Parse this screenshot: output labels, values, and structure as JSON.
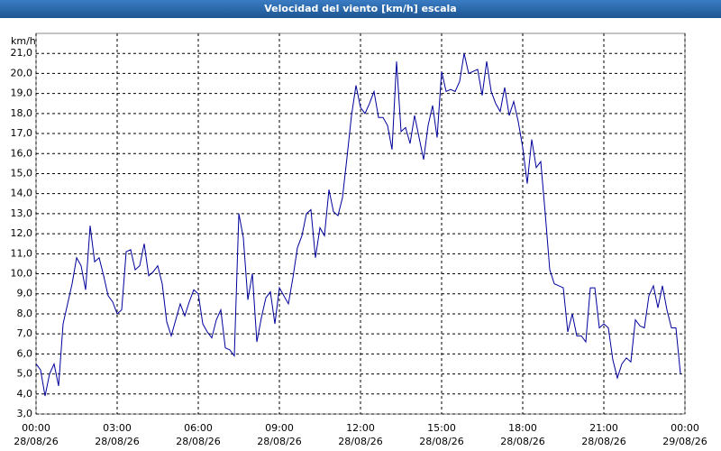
{
  "chart_data": {
    "type": "line",
    "title": "Velocidad del viento [km/h] escala",
    "ylabel": "km/h",
    "xlim": [
      0,
      1440
    ],
    "ylim": [
      3,
      22
    ],
    "grid": true,
    "xticks": [
      {
        "value": 0,
        "label": "00:00"
      },
      {
        "value": 180,
        "label": "03:00"
      },
      {
        "value": 360,
        "label": "06:00"
      },
      {
        "value": 540,
        "label": "09:00"
      },
      {
        "value": 720,
        "label": "12:00"
      },
      {
        "value": 900,
        "label": "15:00"
      },
      {
        "value": 1080,
        "label": "18:00"
      },
      {
        "value": 1260,
        "label": "21:00"
      },
      {
        "value": 1440,
        "label": "00:00"
      }
    ],
    "xtick_dates": [
      "28/08/26",
      "28/08/26",
      "28/08/26",
      "28/08/26",
      "28/08/26",
      "28/08/26",
      "28/08/26",
      "28/08/26",
      "29/08/26"
    ],
    "yticks": [
      {
        "value": 3,
        "label": "3,0"
      },
      {
        "value": 4,
        "label": "4,0"
      },
      {
        "value": 5,
        "label": "5,0"
      },
      {
        "value": 6,
        "label": "6,0"
      },
      {
        "value": 7,
        "label": "7,0"
      },
      {
        "value": 8,
        "label": "8,0"
      },
      {
        "value": 9,
        "label": "9,0"
      },
      {
        "value": 10,
        "label": "10,0"
      },
      {
        "value": 11,
        "label": "11,0"
      },
      {
        "value": 12,
        "label": "12,0"
      },
      {
        "value": 13,
        "label": "13,0"
      },
      {
        "value": 14,
        "label": "14,0"
      },
      {
        "value": 15,
        "label": "15,0"
      },
      {
        "value": 16,
        "label": "16,0"
      },
      {
        "value": 17,
        "label": "17,0"
      },
      {
        "value": 18,
        "label": "18,0"
      },
      {
        "value": 19,
        "label": "19,0"
      },
      {
        "value": 20,
        "label": "20,0"
      },
      {
        "value": 21,
        "label": "21,0"
      }
    ],
    "x": [
      0,
      10,
      20,
      30,
      40,
      50,
      60,
      70,
      80,
      90,
      100,
      110,
      120,
      130,
      140,
      150,
      160,
      170,
      180,
      190,
      200,
      210,
      220,
      230,
      240,
      250,
      260,
      270,
      280,
      290,
      300,
      310,
      320,
      330,
      340,
      350,
      360,
      370,
      380,
      390,
      400,
      410,
      420,
      430,
      440,
      450,
      460,
      470,
      480,
      490,
      500,
      510,
      520,
      530,
      540,
      550,
      560,
      570,
      580,
      590,
      600,
      610,
      620,
      630,
      640,
      650,
      660,
      670,
      680,
      690,
      700,
      710,
      720,
      730,
      740,
      750,
      760,
      770,
      780,
      790,
      800,
      810,
      820,
      830,
      840,
      850,
      860,
      870,
      880,
      890,
      900,
      910,
      920,
      930,
      940,
      950,
      960,
      970,
      980,
      990,
      1000,
      1010,
      1020,
      1030,
      1040,
      1050,
      1060,
      1070,
      1080,
      1090,
      1100,
      1110,
      1120,
      1130,
      1140,
      1150,
      1160,
      1170,
      1180,
      1190,
      1200,
      1210,
      1220,
      1230,
      1240,
      1250,
      1260,
      1270,
      1280,
      1290,
      1300,
      1310,
      1320,
      1330,
      1340,
      1350,
      1360,
      1370,
      1380,
      1390,
      1400,
      1410,
      1420,
      1430
    ],
    "series": [
      {
        "color": "#00009c",
        "values": [
          5.5,
          5.2,
          3.9,
          5.0,
          5.5,
          4.4,
          7.5,
          8.5,
          9.5,
          10.8,
          10.4,
          9.2,
          12.4,
          10.6,
          10.8,
          9.9,
          8.9,
          8.6,
          8.0,
          8.2,
          11.1,
          11.2,
          10.2,
          10.4,
          11.5,
          9.9,
          10.1,
          10.4,
          9.5,
          7.6,
          6.9,
          7.7,
          8.5,
          7.9,
          8.6,
          9.2,
          9.0,
          7.5,
          7.1,
          6.8,
          7.7,
          8.2,
          6.3,
          6.2,
          5.9,
          13.0,
          11.8,
          8.7,
          10.0,
          6.6,
          7.8,
          8.8,
          9.1,
          7.5,
          9.3,
          8.9,
          8.5,
          9.8,
          11.3,
          11.9,
          13.0,
          13.2,
          10.8,
          12.3,
          11.9,
          14.2,
          13.1,
          12.9,
          13.8,
          15.8,
          17.9,
          19.4,
          18.3,
          18.0,
          18.5,
          19.1,
          17.8,
          17.8,
          17.4,
          16.2,
          20.6,
          17.1,
          17.3,
          16.5,
          17.9,
          16.8,
          15.7,
          17.4,
          18.4,
          16.8,
          20.1,
          19.1,
          19.2,
          19.1,
          19.6,
          21.0,
          20.0,
          20.1,
          20.2,
          18.9,
          20.6,
          19.1,
          18.5,
          18.1,
          19.3,
          17.9,
          18.6,
          17.6,
          16.3,
          14.5,
          16.7,
          15.3,
          15.6,
          13.0,
          10.2,
          9.5,
          9.4,
          9.3,
          7.1,
          8.0,
          6.9,
          6.9,
          6.6,
          9.3,
          9.3,
          7.3,
          7.5,
          7.3,
          5.7,
          4.8,
          5.5,
          5.8,
          5.6,
          7.7,
          7.4,
          7.3,
          8.9,
          9.4,
          8.3,
          9.4,
          8.2,
          7.3,
          7.3,
          5.0
        ]
      }
    ]
  }
}
